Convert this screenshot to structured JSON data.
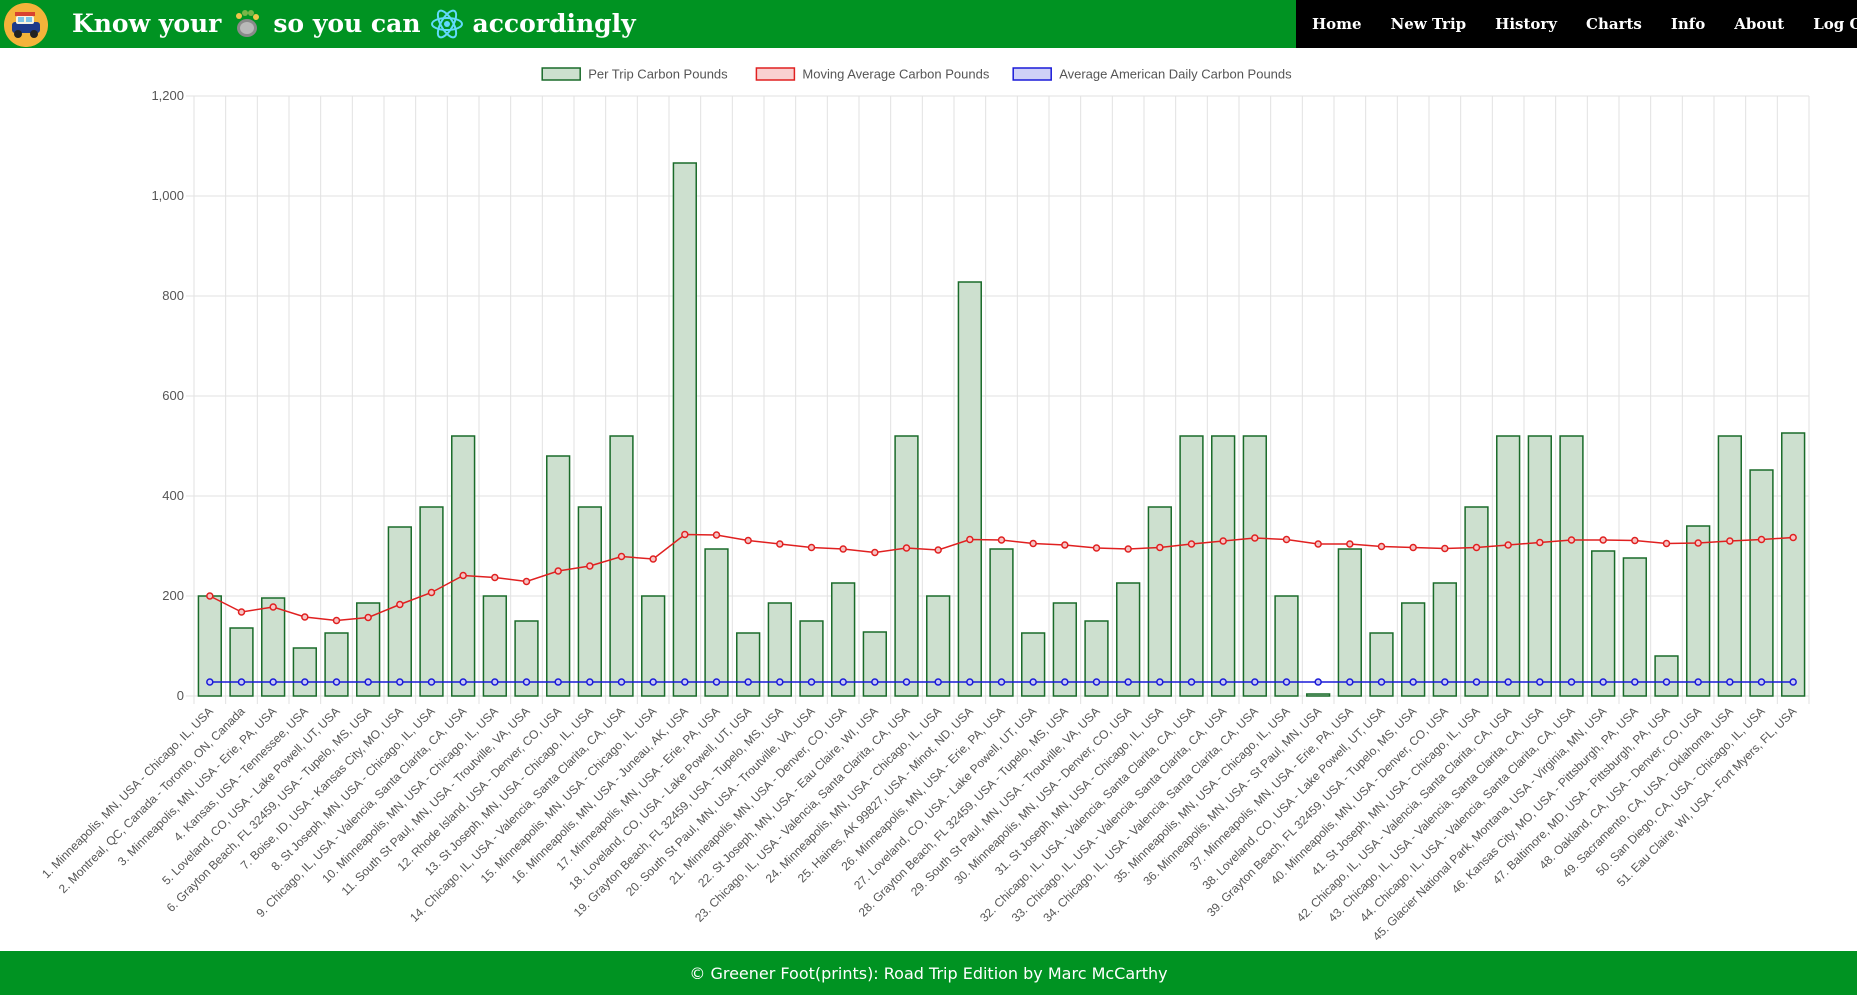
{
  "header": {
    "logo_icon": "road-trip-car-icon",
    "title_part1": "Know your",
    "title_icon1": "footprint-icon",
    "title_part2": "so you can",
    "title_icon2": "react-atom-icon",
    "title_part3": "accordingly",
    "nav": [
      "Home",
      "New Trip",
      "History",
      "Charts",
      "Info",
      "About",
      "Log Out"
    ],
    "bg_color": "#009322",
    "nav_bg_color": "#000000"
  },
  "footer": {
    "text": "© Greener Foot(prints): Road Trip Edition by Marc McCarthy"
  },
  "chart_data": {
    "type": "bar",
    "title": "",
    "xlabel": "",
    "ylabel": "",
    "ylim": [
      0,
      1200
    ],
    "yticks": [
      0,
      200,
      400,
      600,
      800,
      1000,
      1200
    ],
    "ytick_labels": [
      "0",
      "200",
      "400",
      "600",
      "800",
      "1,000",
      "1,200"
    ],
    "grid": true,
    "legend_position": "top",
    "categories": [
      "1. Minneapolis, MN, USA - Chicago, IL, USA",
      "2. Montreal, QC, Canada - Toronto, ON, Canada",
      "3. Minneapolis, MN, USA - Erie, PA, USA",
      "4. Kansas, USA - Tennessee, USA",
      "5. Loveland, CO, USA - Lake Powell, UT, USA",
      "6. Grayton Beach, FL 32459, USA - Tupelo, MS, USA",
      "7. Boise, ID, USA - Kansas City, MO, USA",
      "8. St Joseph, MN, USA - Chicago, IL, USA",
      "9. Chicago, IL, USA - Valencia, Santa Clarita, CA, USA",
      "10. Minneapolis, MN, USA - Chicago, IL, USA",
      "11. South St Paul, MN, USA - Troutville, VA, USA",
      "12. Rhode Island, USA - Denver, CO, USA",
      "13. St Joseph, MN, USA - Chicago, IL, USA",
      "14. Chicago, IL, USA - Valencia, Santa Clarita, CA, USA",
      "15. Minneapolis, MN, USA - Chicago, IL, USA",
      "16. Minneapolis, MN, USA - Juneau, AK, USA",
      "17. Minneapolis, MN, USA - Erie, PA, USA",
      "18. Loveland, CO, USA - Lake Powell, UT, USA",
      "19. Grayton Beach, FL 32459, USA - Tupelo, MS, USA",
      "20. South St Paul, MN, USA - Troutville, VA, USA",
      "21. Minneapolis, MN, USA - Denver, CO, USA",
      "22. St Joseph, MN, USA - Eau Claire, WI, USA",
      "23. Chicago, IL, USA - Valencia, Santa Clarita, CA, USA",
      "24. Minneapolis, MN, USA - Chicago, IL, USA",
      "25. Haines, AK 99827, USA - Minot, ND, USA",
      "26. Minneapolis, MN, USA - Erie, PA, USA",
      "27. Loveland, CO, USA - Lake Powell, UT, USA",
      "28. Grayton Beach, FL 32459, USA - Tupelo, MS, USA",
      "29. South St Paul, MN, USA - Troutville, VA, USA",
      "30. Minneapolis, MN, USA - Denver, CO, USA",
      "31. St Joseph, MN, USA - Chicago, IL, USA",
      "32. Chicago, IL, USA - Valencia, Santa Clarita, CA, USA",
      "33. Chicago, IL, USA - Valencia, Santa Clarita, CA, USA",
      "34. Chicago, IL, USA - Valencia, Santa Clarita, CA, USA",
      "35. Minneapolis, MN, USA - Chicago, IL, USA",
      "36. Minneapolis, MN, USA - St Paul, MN, USA",
      "37. Minneapolis, MN, USA - Erie, PA, USA",
      "38. Loveland, CO, USA - Lake Powell, UT, USA",
      "39. Grayton Beach, FL 32459, USA - Tupelo, MS, USA",
      "40. Minneapolis, MN, USA - Denver, CO, USA",
      "41. St Joseph, MN, USA - Chicago, IL, USA",
      "42. Chicago, IL, USA - Valencia, Santa Clarita, CA, USA",
      "43. Chicago, IL, USA - Valencia, Santa Clarita, CA, USA",
      "44. Chicago, IL, USA - Valencia, Santa Clarita, CA, USA",
      "45. Glacier National Park, Montana, USA - Virginia, MN, USA",
      "46. Kansas City, MO, USA - Pittsburgh, PA, USA",
      "47. Baltimore, MD, USA - Pittsburgh, PA, USA",
      "48. Oakland, CA, USA - Denver, CO, USA",
      "49. Sacramento, CA, USA - Oklahoma, USA",
      "50. San Diego, CA, USA - Chicago, IL, USA",
      "51. Eau Claire, WI, USA - Fort Myers, FL, USA"
    ],
    "series": [
      {
        "name": "Per Trip Carbon Pounds",
        "type": "bar",
        "color": "#1a6b2a",
        "fill": "#cde0cf",
        "values": [
          200,
          136,
          196,
          96,
          126,
          186,
          338,
          378,
          520,
          200,
          150,
          480,
          378,
          520,
          200,
          1066,
          294,
          126,
          186,
          150,
          226,
          128,
          520,
          200,
          828,
          294,
          126,
          186,
          150,
          226,
          378,
          520,
          520,
          520,
          200,
          4,
          294,
          126,
          186,
          226,
          378,
          520,
          520,
          520,
          290,
          276,
          80,
          340,
          520,
          452,
          526
        ]
      },
      {
        "name": "Moving Average Carbon Pounds",
        "type": "line",
        "color": "#e02020",
        "values": [
          200,
          168,
          178,
          158,
          151,
          157,
          183,
          207,
          241,
          237,
          229,
          250,
          260,
          279,
          274,
          323,
          322,
          311,
          304,
          297,
          294,
          287,
          296,
          292,
          313,
          312,
          305,
          302,
          296,
          294,
          297,
          304,
          310,
          316,
          313,
          304,
          304,
          299,
          297,
          295,
          297,
          302,
          307,
          312,
          312,
          311,
          305,
          306,
          310,
          313,
          317
        ]
      },
      {
        "name": "Average American Daily Carbon Pounds",
        "type": "line",
        "color": "#1a1ad8",
        "values": [
          28,
          28,
          28,
          28,
          28,
          28,
          28,
          28,
          28,
          28,
          28,
          28,
          28,
          28,
          28,
          28,
          28,
          28,
          28,
          28,
          28,
          28,
          28,
          28,
          28,
          28,
          28,
          28,
          28,
          28,
          28,
          28,
          28,
          28,
          28,
          28,
          28,
          28,
          28,
          28,
          28,
          28,
          28,
          28,
          28,
          28,
          28,
          28,
          28,
          28,
          28
        ]
      }
    ]
  }
}
